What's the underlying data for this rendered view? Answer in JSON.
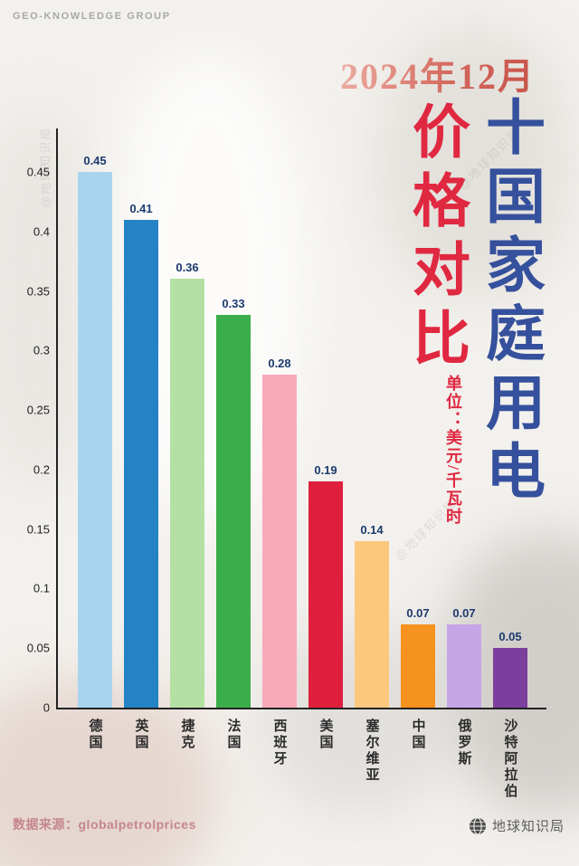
{
  "header": {
    "brand": "GEO-KNOWLEDGE GROUP",
    "date": "2024年12月"
  },
  "title": {
    "main_vertical": "十国家庭用电",
    "sub_vertical": "价格对比",
    "unit_vertical": "单位：美元/千瓦时"
  },
  "chart_data": {
    "type": "bar",
    "title": "2024年12月 十国家庭用电价格对比",
    "unit": "美元/千瓦时",
    "categories": [
      "德国",
      "英国",
      "捷克",
      "法国",
      "西班牙",
      "美国",
      "塞尔维亚",
      "中国",
      "俄罗斯",
      "沙特阿拉伯"
    ],
    "values": [
      0.45,
      0.41,
      0.36,
      0.33,
      0.28,
      0.19,
      0.14,
      0.07,
      0.07,
      0.05
    ],
    "bar_colors": [
      "#a9d4ee",
      "#2383c4",
      "#b5e0a4",
      "#3bae4b",
      "#f8a9ba",
      "#e01f3e",
      "#fcc87d",
      "#f6921e",
      "#c6a6e6",
      "#7b3f9e"
    ],
    "value_labels": [
      "0.45",
      "0.41",
      "0.36",
      "0.33",
      "0.28",
      "0.19",
      "0.14",
      "0.07",
      "0.07",
      "0.05"
    ],
    "yticks": [
      "0",
      "0.05",
      "0.1",
      "0.15",
      "0.2",
      "0.25",
      "0.3",
      "0.35",
      "0.4",
      "0.45"
    ],
    "ylim": [
      0,
      0.45
    ],
    "xlabel": "",
    "ylabel": "",
    "grid": false,
    "legend": "none",
    "value_label_color": "#1c3a6e"
  },
  "watermark": {
    "text": "@地球知识局"
  },
  "footer": {
    "source": "数据来源：globalpetrolprices",
    "logo_label": "地球知识局"
  },
  "colors": {
    "accent_red": "#e02840",
    "accent_blue": "#35509c",
    "date_gradient_from": "#ecab9f",
    "date_gradient_to": "#c8554b",
    "axis_color": "#222222"
  }
}
